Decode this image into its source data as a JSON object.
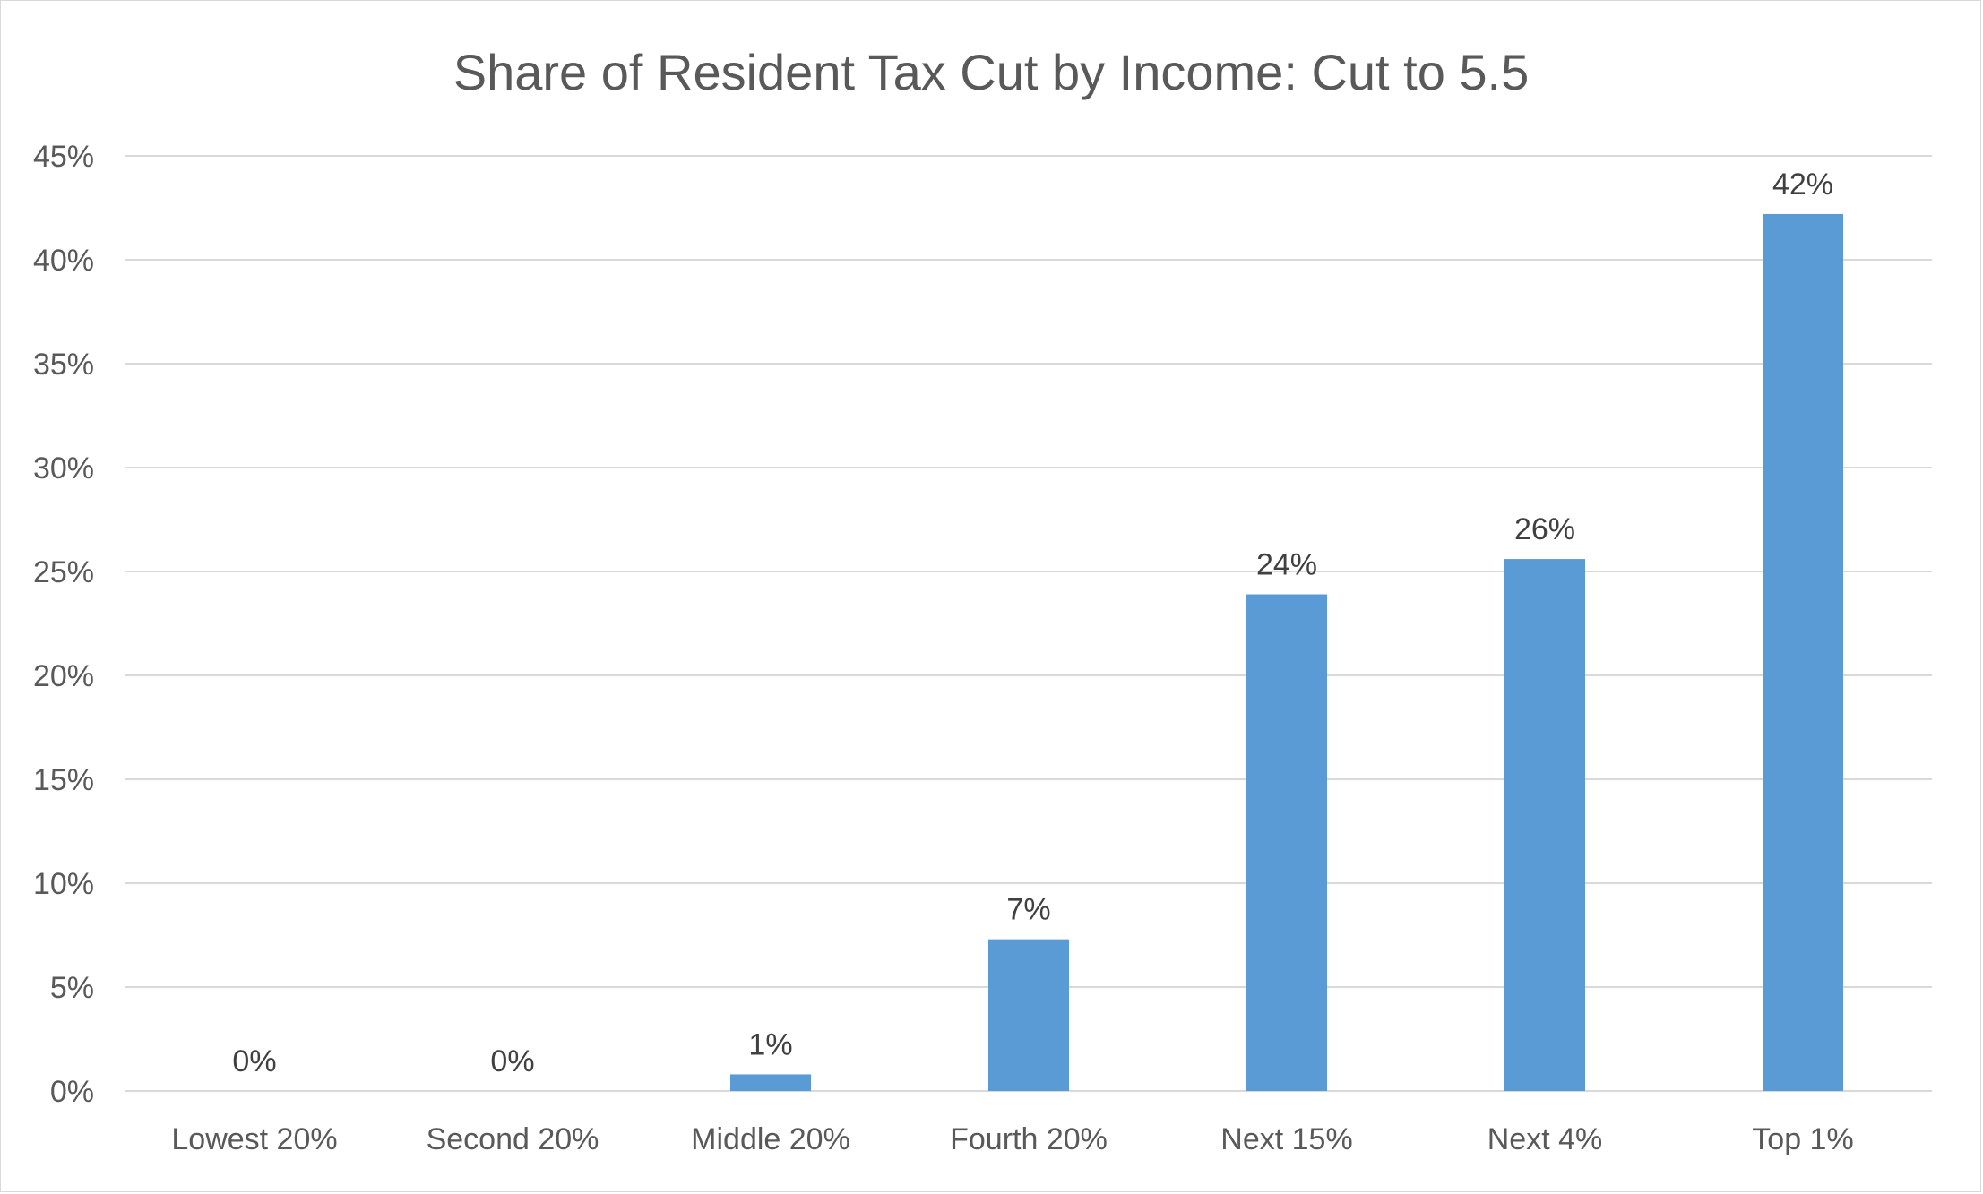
{
  "chart_data": {
    "type": "bar",
    "title": "Share of Resident Tax Cut by Income: Cut to 5.5",
    "categories": [
      "Lowest 20%",
      "Second 20%",
      "Middle 20%",
      "Fourth 20%",
      "Next 15%",
      "Next 4%",
      "Top 1%"
    ],
    "values": [
      0,
      0,
      0.8,
      7.3,
      23.9,
      25.6,
      42.2
    ],
    "data_labels": [
      "0%",
      "0%",
      "1%",
      "7%",
      "24%",
      "26%",
      "42%"
    ],
    "ylim": [
      0,
      45
    ],
    "yticks": [
      0,
      5,
      10,
      15,
      20,
      25,
      30,
      35,
      40,
      45
    ],
    "ytick_labels": [
      "0%",
      "5%",
      "10%",
      "15%",
      "20%",
      "25%",
      "30%",
      "35%",
      "40%",
      "45%"
    ],
    "xlabel": "",
    "ylabel": "",
    "grid": true,
    "legend": "none",
    "bar_color": "#5b9bd5"
  }
}
